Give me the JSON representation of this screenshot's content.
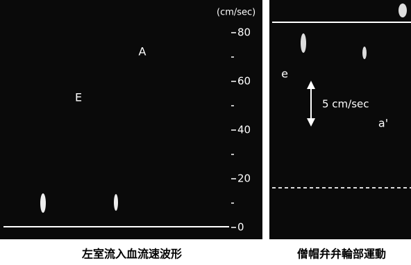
{
  "left_panel": {
    "unit": "(cm/sec)",
    "ticks": [
      80,
      60,
      40,
      20,
      0
    ],
    "labels": [
      "A",
      "E"
    ],
    "caption": "左室流入血流速波形"
  },
  "right_panel": {
    "labels": [
      "e",
      "a'"
    ],
    "scale_label": "5 cm/sec",
    "caption": "僧帽弁弁輪部運動"
  }
}
